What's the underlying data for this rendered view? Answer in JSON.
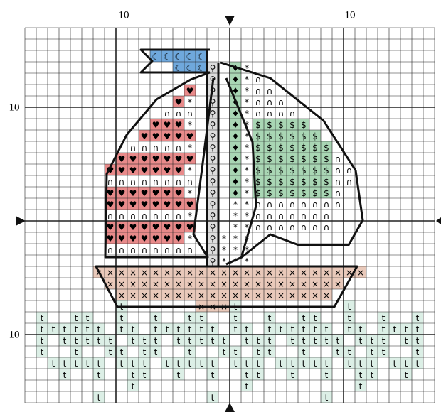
{
  "axis_labels": {
    "top": [
      "10",
      "10"
    ],
    "left": [
      "10",
      "10"
    ]
  },
  "symbols": [
    "☾",
    "⚲",
    "♥",
    "∩",
    "*",
    "♦",
    "$",
    "×",
    "t"
  ]
}
